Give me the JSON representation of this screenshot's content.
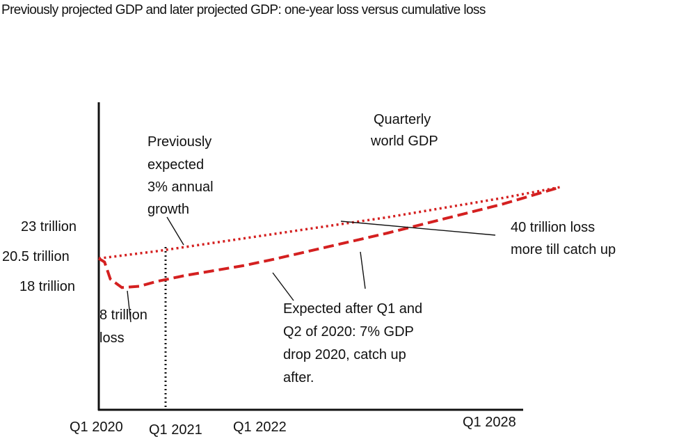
{
  "chart_data": {
    "type": "line",
    "title": "Previously projected GDP and later projected GDP: one-year loss versus cumulative loss",
    "xlabel": "",
    "ylabel": "",
    "x_ticks": [
      "Q1 2020",
      "Q1 2021",
      "Q1 2022",
      "Q1 2028"
    ],
    "y_ticks": [
      "23 trillion",
      "20.5 trillion",
      "18 trillion"
    ],
    "series": [
      {
        "name": "Previously expected 3% annual growth",
        "style": "dotted",
        "color": "#d42020",
        "x": [
          2020.0,
          2021.0,
          2022.0,
          2023.0,
          2024.0,
          2025.0,
          2026.0,
          2027.0,
          2028.0
        ],
        "y": [
          20.5,
          21.1,
          21.8,
          22.5,
          23.2,
          23.9,
          24.7,
          25.5,
          26.4
        ]
      },
      {
        "name": "Expected after Q1 and Q2 of 2020: 7% GDP drop 2020, catch up after.",
        "style": "dashed",
        "color": "#d42020",
        "x": [
          2020.0,
          2020.1,
          2020.2,
          2020.4,
          2020.7,
          2021.0,
          2021.5,
          2022.0,
          2022.5,
          2023.0,
          2024.0,
          2025.0,
          2026.0,
          2027.0,
          2028.0
        ],
        "y": [
          20.5,
          20.2,
          18.8,
          18.1,
          18.2,
          18.6,
          19.1,
          19.5,
          19.9,
          20.4,
          21.5,
          22.6,
          23.8,
          25.0,
          26.4
        ]
      }
    ],
    "annotations": [
      "Quarterly world GDP",
      "Previously expected 3% annual growth",
      "40 trillion loss more till catch up",
      "8 trillion loss",
      "Expected after Q1 and Q2 of 2020: 7% GDP drop 2020, catch up after."
    ]
  },
  "labels": {
    "title": "Previously projected GDP and later projected GDP: one-year loss versus cumulative loss",
    "quarterly": [
      "Quarterly",
      "world GDP"
    ],
    "previously": [
      "Previously",
      "expected",
      "3% annual",
      "growth"
    ],
    "forty_loss": [
      "40 trillion loss",
      "more till catch up"
    ],
    "eight_loss": [
      "8 trillion",
      "loss"
    ],
    "expected_after": [
      "Expected after Q1 and",
      "Q2 of 2020: 7% GDP",
      "drop 2020, catch up",
      "after."
    ],
    "yticks": [
      "23 trillion",
      "20.5 trillion",
      "18 trillion"
    ],
    "xticks": [
      "Q1 2020",
      "Q1 2021",
      "Q1 2022",
      "Q1 2028"
    ]
  },
  "colors": {
    "series": "#d42020",
    "axis": "#111111",
    "text": "#111111"
  }
}
